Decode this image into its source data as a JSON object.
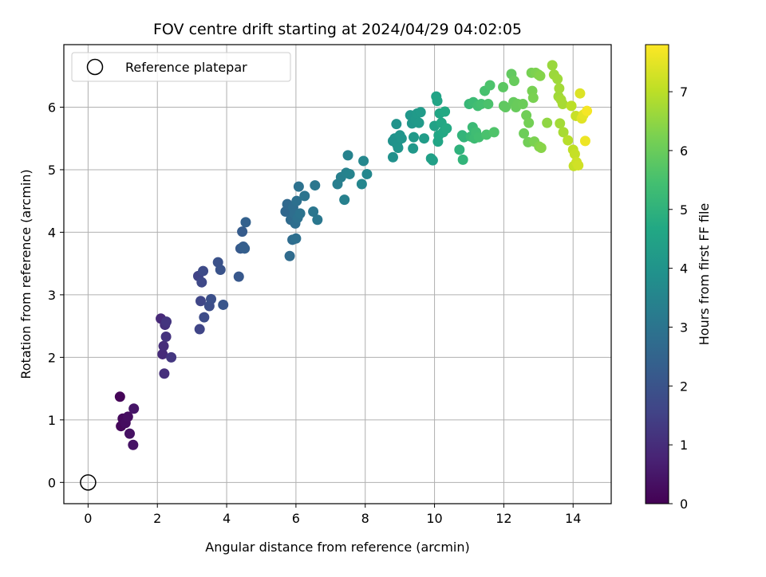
{
  "chart_data": {
    "type": "scatter",
    "title": "FOV centre drift starting at 2024/04/29 04:02:05",
    "xlabel": "Angular distance from reference (arcmin)",
    "ylabel": "Rotation from reference (arcmin)",
    "xlim": [
      -0.7,
      15.1
    ],
    "ylim": [
      -0.34,
      7.0
    ],
    "xticks": [
      0,
      2,
      4,
      6,
      8,
      10,
      12,
      14
    ],
    "yticks": [
      0,
      1,
      2,
      3,
      4,
      5,
      6
    ],
    "grid": true,
    "legend": {
      "placement": "top-left",
      "entries": [
        "Reference platepar"
      ]
    },
    "reference_point": {
      "x": 0,
      "y": 0,
      "label": "Reference platepar"
    },
    "colorbar": {
      "label": "Hours from first FF file",
      "colormap": "viridis",
      "range": [
        0,
        7.8
      ],
      "ticks": [
        0,
        1,
        2,
        3,
        4,
        5,
        6,
        7
      ]
    },
    "points": [
      {
        "x": 0.92,
        "y": 1.37,
        "h": 0.1
      },
      {
        "x": 0.95,
        "y": 0.9,
        "h": 0.15
      },
      {
        "x": 1.0,
        "y": 1.02,
        "h": 0.2
      },
      {
        "x": 1.08,
        "y": 0.95,
        "h": 0.25
      },
      {
        "x": 1.15,
        "y": 1.05,
        "h": 0.3
      },
      {
        "x": 1.2,
        "y": 0.78,
        "h": 0.35
      },
      {
        "x": 1.3,
        "y": 0.6,
        "h": 0.4
      },
      {
        "x": 1.32,
        "y": 1.18,
        "h": 0.45
      },
      {
        "x": 2.1,
        "y": 2.62,
        "h": 0.9
      },
      {
        "x": 2.15,
        "y": 2.05,
        "h": 0.95
      },
      {
        "x": 2.18,
        "y": 2.18,
        "h": 1.0
      },
      {
        "x": 2.2,
        "y": 1.74,
        "h": 1.05
      },
      {
        "x": 2.22,
        "y": 2.52,
        "h": 1.1
      },
      {
        "x": 2.25,
        "y": 2.33,
        "h": 1.15
      },
      {
        "x": 2.26,
        "y": 2.57,
        "h": 1.2
      },
      {
        "x": 2.4,
        "y": 2.0,
        "h": 1.25
      },
      {
        "x": 3.18,
        "y": 3.3,
        "h": 1.55
      },
      {
        "x": 3.22,
        "y": 2.45,
        "h": 1.6
      },
      {
        "x": 3.25,
        "y": 2.9,
        "h": 1.65
      },
      {
        "x": 3.28,
        "y": 3.2,
        "h": 1.7
      },
      {
        "x": 3.32,
        "y": 3.38,
        "h": 1.75
      },
      {
        "x": 3.35,
        "y": 2.64,
        "h": 1.8
      },
      {
        "x": 3.5,
        "y": 2.82,
        "h": 1.85
      },
      {
        "x": 3.55,
        "y": 2.93,
        "h": 1.9
      },
      {
        "x": 3.75,
        "y": 3.52,
        "h": 1.95
      },
      {
        "x": 3.82,
        "y": 3.4,
        "h": 2.0
      },
      {
        "x": 3.9,
        "y": 2.84,
        "h": 2.05
      },
      {
        "x": 4.35,
        "y": 3.29,
        "h": 2.15
      },
      {
        "x": 4.4,
        "y": 3.74,
        "h": 2.2
      },
      {
        "x": 4.45,
        "y": 4.01,
        "h": 2.25
      },
      {
        "x": 4.48,
        "y": 3.77,
        "h": 2.3
      },
      {
        "x": 4.52,
        "y": 3.74,
        "h": 2.35
      },
      {
        "x": 4.55,
        "y": 4.16,
        "h": 2.4
      },
      {
        "x": 5.7,
        "y": 4.33,
        "h": 2.6
      },
      {
        "x": 5.75,
        "y": 4.45,
        "h": 2.65
      },
      {
        "x": 5.82,
        "y": 3.62,
        "h": 2.7
      },
      {
        "x": 5.85,
        "y": 4.2,
        "h": 2.72
      },
      {
        "x": 5.9,
        "y": 3.88,
        "h": 2.75
      },
      {
        "x": 5.92,
        "y": 4.4,
        "h": 2.78
      },
      {
        "x": 5.96,
        "y": 4.3,
        "h": 2.8
      },
      {
        "x": 5.98,
        "y": 4.14,
        "h": 2.82
      },
      {
        "x": 6.0,
        "y": 3.9,
        "h": 2.85
      },
      {
        "x": 6.02,
        "y": 4.5,
        "h": 2.88
      },
      {
        "x": 6.05,
        "y": 4.23,
        "h": 2.9
      },
      {
        "x": 6.08,
        "y": 4.73,
        "h": 2.92
      },
      {
        "x": 6.12,
        "y": 4.3,
        "h": 2.95
      },
      {
        "x": 6.25,
        "y": 4.58,
        "h": 3.0
      },
      {
        "x": 6.5,
        "y": 4.33,
        "h": 3.05
      },
      {
        "x": 6.55,
        "y": 4.75,
        "h": 3.08
      },
      {
        "x": 6.62,
        "y": 4.2,
        "h": 3.1
      },
      {
        "x": 7.2,
        "y": 4.77,
        "h": 3.3
      },
      {
        "x": 7.3,
        "y": 4.88,
        "h": 3.33
      },
      {
        "x": 7.4,
        "y": 4.52,
        "h": 3.36
      },
      {
        "x": 7.45,
        "y": 4.95,
        "h": 3.4
      },
      {
        "x": 7.5,
        "y": 5.23,
        "h": 3.43
      },
      {
        "x": 7.55,
        "y": 4.93,
        "h": 3.46
      },
      {
        "x": 7.9,
        "y": 4.77,
        "h": 3.55
      },
      {
        "x": 7.95,
        "y": 5.14,
        "h": 3.58
      },
      {
        "x": 8.05,
        "y": 4.93,
        "h": 3.6
      },
      {
        "x": 8.8,
        "y": 5.2,
        "h": 3.9
      },
      {
        "x": 8.8,
        "y": 5.46,
        "h": 3.92
      },
      {
        "x": 8.85,
        "y": 5.5,
        "h": 3.94
      },
      {
        "x": 8.9,
        "y": 5.73,
        "h": 3.96
      },
      {
        "x": 8.92,
        "y": 5.4,
        "h": 3.98
      },
      {
        "x": 8.95,
        "y": 5.35,
        "h": 4.0
      },
      {
        "x": 9.0,
        "y": 5.55,
        "h": 4.02
      },
      {
        "x": 9.05,
        "y": 5.5,
        "h": 4.04
      },
      {
        "x": 9.3,
        "y": 5.87,
        "h": 4.1
      },
      {
        "x": 9.35,
        "y": 5.74,
        "h": 4.12
      },
      {
        "x": 9.38,
        "y": 5.34,
        "h": 4.14
      },
      {
        "x": 9.4,
        "y": 5.52,
        "h": 4.16
      },
      {
        "x": 9.45,
        "y": 5.8,
        "h": 4.18
      },
      {
        "x": 9.5,
        "y": 5.9,
        "h": 4.2
      },
      {
        "x": 9.55,
        "y": 5.75,
        "h": 4.22
      },
      {
        "x": 9.6,
        "y": 5.92,
        "h": 4.24
      },
      {
        "x": 9.7,
        "y": 5.5,
        "h": 4.26
      },
      {
        "x": 9.9,
        "y": 5.18,
        "h": 4.4
      },
      {
        "x": 9.95,
        "y": 5.15,
        "h": 4.42
      },
      {
        "x": 10.0,
        "y": 5.7,
        "h": 4.45
      },
      {
        "x": 10.05,
        "y": 6.17,
        "h": 4.5
      },
      {
        "x": 10.08,
        "y": 6.1,
        "h": 4.55
      },
      {
        "x": 10.1,
        "y": 5.45,
        "h": 4.58
      },
      {
        "x": 10.12,
        "y": 5.55,
        "h": 4.6
      },
      {
        "x": 10.15,
        "y": 5.9,
        "h": 4.62
      },
      {
        "x": 10.2,
        "y": 5.75,
        "h": 4.65
      },
      {
        "x": 10.25,
        "y": 5.6,
        "h": 4.68
      },
      {
        "x": 10.3,
        "y": 5.93,
        "h": 4.7
      },
      {
        "x": 10.35,
        "y": 5.66,
        "h": 4.72
      },
      {
        "x": 10.72,
        "y": 5.32,
        "h": 5.0
      },
      {
        "x": 10.8,
        "y": 5.55,
        "h": 5.05
      },
      {
        "x": 10.82,
        "y": 5.16,
        "h": 5.08
      },
      {
        "x": 10.85,
        "y": 5.52,
        "h": 5.1
      },
      {
        "x": 11.0,
        "y": 6.05,
        "h": 5.2
      },
      {
        "x": 11.05,
        "y": 5.53,
        "h": 5.23
      },
      {
        "x": 11.1,
        "y": 5.68,
        "h": 5.26
      },
      {
        "x": 11.12,
        "y": 6.08,
        "h": 5.3
      },
      {
        "x": 11.15,
        "y": 5.5,
        "h": 5.33
      },
      {
        "x": 11.2,
        "y": 5.6,
        "h": 5.36
      },
      {
        "x": 11.25,
        "y": 6.02,
        "h": 5.4
      },
      {
        "x": 11.28,
        "y": 5.52,
        "h": 5.42
      },
      {
        "x": 11.35,
        "y": 6.05,
        "h": 5.45
      },
      {
        "x": 11.45,
        "y": 6.26,
        "h": 5.5
      },
      {
        "x": 11.5,
        "y": 5.56,
        "h": 5.53
      },
      {
        "x": 11.55,
        "y": 6.05,
        "h": 5.56
      },
      {
        "x": 11.6,
        "y": 6.35,
        "h": 5.58
      },
      {
        "x": 11.72,
        "y": 5.6,
        "h": 5.62
      },
      {
        "x": 11.98,
        "y": 6.32,
        "h": 5.8
      },
      {
        "x": 12.0,
        "y": 6.02,
        "h": 5.83
      },
      {
        "x": 12.05,
        "y": 6.0,
        "h": 5.86
      },
      {
        "x": 12.22,
        "y": 6.53,
        "h": 5.9
      },
      {
        "x": 12.28,
        "y": 6.08,
        "h": 5.93
      },
      {
        "x": 12.3,
        "y": 6.42,
        "h": 5.96
      },
      {
        "x": 12.35,
        "y": 6.0,
        "h": 5.98
      },
      {
        "x": 12.4,
        "y": 6.05,
        "h": 6.0
      },
      {
        "x": 12.55,
        "y": 6.05,
        "h": 6.02
      },
      {
        "x": 12.58,
        "y": 5.58,
        "h": 6.05
      },
      {
        "x": 12.65,
        "y": 5.87,
        "h": 6.1
      },
      {
        "x": 12.7,
        "y": 5.44,
        "h": 6.12
      },
      {
        "x": 12.72,
        "y": 5.75,
        "h": 6.14
      },
      {
        "x": 12.8,
        "y": 6.55,
        "h": 6.18
      },
      {
        "x": 12.82,
        "y": 6.26,
        "h": 6.2
      },
      {
        "x": 12.85,
        "y": 6.15,
        "h": 6.22
      },
      {
        "x": 12.88,
        "y": 5.45,
        "h": 6.24
      },
      {
        "x": 12.92,
        "y": 6.55,
        "h": 6.26
      },
      {
        "x": 13.0,
        "y": 6.52,
        "h": 6.3
      },
      {
        "x": 13.02,
        "y": 5.37,
        "h": 6.33
      },
      {
        "x": 13.05,
        "y": 6.5,
        "h": 6.36
      },
      {
        "x": 13.08,
        "y": 5.35,
        "h": 6.4
      },
      {
        "x": 13.25,
        "y": 5.75,
        "h": 6.5
      },
      {
        "x": 13.4,
        "y": 6.67,
        "h": 6.6
      },
      {
        "x": 13.45,
        "y": 6.52,
        "h": 6.63
      },
      {
        "x": 13.55,
        "y": 6.45,
        "h": 6.66
      },
      {
        "x": 13.58,
        "y": 6.17,
        "h": 6.68
      },
      {
        "x": 13.6,
        "y": 6.3,
        "h": 6.7
      },
      {
        "x": 13.62,
        "y": 5.74,
        "h": 6.72
      },
      {
        "x": 13.65,
        "y": 6.12,
        "h": 6.74
      },
      {
        "x": 13.7,
        "y": 6.05,
        "h": 6.76
      },
      {
        "x": 13.72,
        "y": 5.6,
        "h": 6.78
      },
      {
        "x": 13.85,
        "y": 5.47,
        "h": 6.95
      },
      {
        "x": 13.95,
        "y": 6.02,
        "h": 7.0
      },
      {
        "x": 14.0,
        "y": 5.32,
        "h": 7.05
      },
      {
        "x": 14.02,
        "y": 5.06,
        "h": 7.1
      },
      {
        "x": 14.05,
        "y": 5.25,
        "h": 7.12
      },
      {
        "x": 14.08,
        "y": 5.86,
        "h": 7.15
      },
      {
        "x": 14.1,
        "y": 5.12,
        "h": 7.2
      },
      {
        "x": 14.15,
        "y": 5.07,
        "h": 7.25
      },
      {
        "x": 14.2,
        "y": 6.22,
        "h": 7.4
      },
      {
        "x": 14.25,
        "y": 5.82,
        "h": 7.45
      },
      {
        "x": 14.3,
        "y": 5.88,
        "h": 7.5
      },
      {
        "x": 14.35,
        "y": 5.46,
        "h": 7.6
      },
      {
        "x": 14.4,
        "y": 5.94,
        "h": 7.7
      }
    ]
  }
}
